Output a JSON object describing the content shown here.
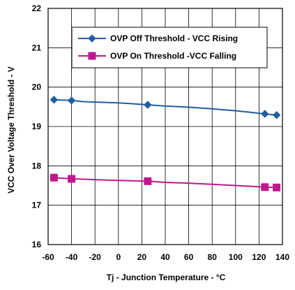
{
  "chart_data": {
    "type": "line",
    "title": "",
    "xlabel": "Tj - Junction Temperature -  °C",
    "ylabel": "VCC Over Voltage Threshold - V",
    "xlim": [
      -60,
      140
    ],
    "ylim": [
      16,
      22
    ],
    "xticks": [
      -60,
      -40,
      -20,
      0,
      20,
      40,
      60,
      80,
      100,
      120,
      140
    ],
    "yticks": [
      16,
      17,
      18,
      19,
      20,
      21,
      22
    ],
    "grid": true,
    "legend_position": "top-right",
    "series": [
      {
        "name": "OVP Off Threshold - VCC Rising",
        "color": "#1F5FA0",
        "marker": "diamond",
        "x": [
          -55,
          -40,
          -30,
          -20,
          -10,
          0,
          10,
          25,
          40,
          60,
          80,
          100,
          110,
          125,
          135
        ],
        "y": [
          19.68,
          19.66,
          19.63,
          19.62,
          19.61,
          19.6,
          19.58,
          19.55,
          19.52,
          19.49,
          19.45,
          19.4,
          19.37,
          19.32,
          19.29
        ],
        "marker_x": [
          -55,
          -40,
          25,
          125,
          135
        ],
        "marker_y": [
          19.68,
          19.66,
          19.55,
          19.32,
          19.29
        ]
      },
      {
        "name": "OVP On Threshold -VCC Falling",
        "color": "#C0188C",
        "marker": "square",
        "x": [
          -55,
          -40,
          -20,
          0,
          25,
          40,
          60,
          80,
          100,
          125,
          135
        ],
        "y": [
          17.7,
          17.67,
          17.65,
          17.63,
          17.61,
          17.58,
          17.56,
          17.53,
          17.5,
          17.46,
          17.45
        ],
        "marker_x": [
          -55,
          -40,
          25,
          125,
          135
        ],
        "marker_y": [
          17.7,
          17.67,
          17.61,
          17.46,
          17.45
        ]
      }
    ]
  }
}
